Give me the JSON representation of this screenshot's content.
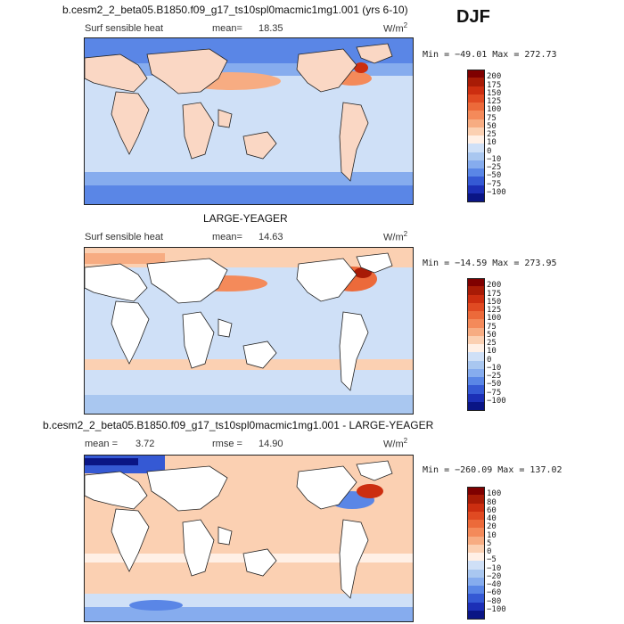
{
  "season": "DJF",
  "panels": [
    {
      "title": "b.cesm2_2_beta05.B1850.f09_g17_ts10spl0macmic1mg1.001 (yrs 6-10)",
      "variable": "Surf sensible heat",
      "stat1_label": "mean=",
      "stat1_value": "18.35",
      "stat2_label": "",
      "stat2_value": "",
      "units": "W/m",
      "units_exp": "2",
      "minmax": "Min = −49.01  Max = 272.73",
      "colorbar_labels": [
        "200",
        "175",
        "150",
        "125",
        "100",
        "75",
        "50",
        "25",
        "10",
        "0",
        "−10",
        "−25",
        "−50",
        "−75",
        "−100"
      ],
      "colorbar_colors": [
        "#7f0000",
        "#a81b06",
        "#cc2e10",
        "#e04a22",
        "#ec6a3a",
        "#f48a5a",
        "#f7ac82",
        "#fbd0b2",
        "#fff0e6",
        "#cfe0f7",
        "#a9c7f0",
        "#86acee",
        "#5a86e6",
        "#3559d4",
        "#1c2fb6",
        "#0a1585"
      ],
      "land_color": "#fad7c4"
    },
    {
      "title": "LARGE-YEAGER",
      "variable": "Surf sensible heat",
      "stat1_label": "mean=",
      "stat1_value": "14.63",
      "stat2_label": "",
      "stat2_value": "",
      "units": "W/m",
      "units_exp": "2",
      "minmax": "Min = −14.59  Max = 273.95",
      "colorbar_labels": [
        "200",
        "175",
        "150",
        "125",
        "100",
        "75",
        "50",
        "25",
        "10",
        "0",
        "−10",
        "−25",
        "−50",
        "−75",
        "−100"
      ],
      "colorbar_colors": [
        "#7f0000",
        "#a81b06",
        "#cc2e10",
        "#e04a22",
        "#ec6a3a",
        "#f48a5a",
        "#f7ac82",
        "#fbd0b2",
        "#fff0e6",
        "#cfe0f7",
        "#a9c7f0",
        "#86acee",
        "#5a86e6",
        "#3559d4",
        "#1c2fb6",
        "#0a1585"
      ],
      "land_color": "#ffffff"
    },
    {
      "title": "b.cesm2_2_beta05.B1850.f09_g17_ts10spl0macmic1mg1.001 - LARGE-YEAGER",
      "variable": "",
      "stat1_label": "mean =",
      "stat1_value": "3.72",
      "stat2_label": "rmse =",
      "stat2_value": "14.90",
      "units": "W/m",
      "units_exp": "2",
      "minmax": "Min = −260.09  Max = 137.02",
      "colorbar_labels": [
        "100",
        "80",
        "60",
        "40",
        "20",
        "10",
        "5",
        "0",
        "−5",
        "−10",
        "−20",
        "−40",
        "−60",
        "−80",
        "−100"
      ],
      "colorbar_colors": [
        "#7f0000",
        "#a81b06",
        "#cc2e10",
        "#e04a22",
        "#ec6a3a",
        "#f48a5a",
        "#f7ac82",
        "#fbd0b2",
        "#fff0e6",
        "#cfe0f7",
        "#a9c7f0",
        "#86acee",
        "#5a86e6",
        "#3559d4",
        "#1c2fb6",
        "#0a1585"
      ],
      "land_color": "#ffffff"
    }
  ]
}
